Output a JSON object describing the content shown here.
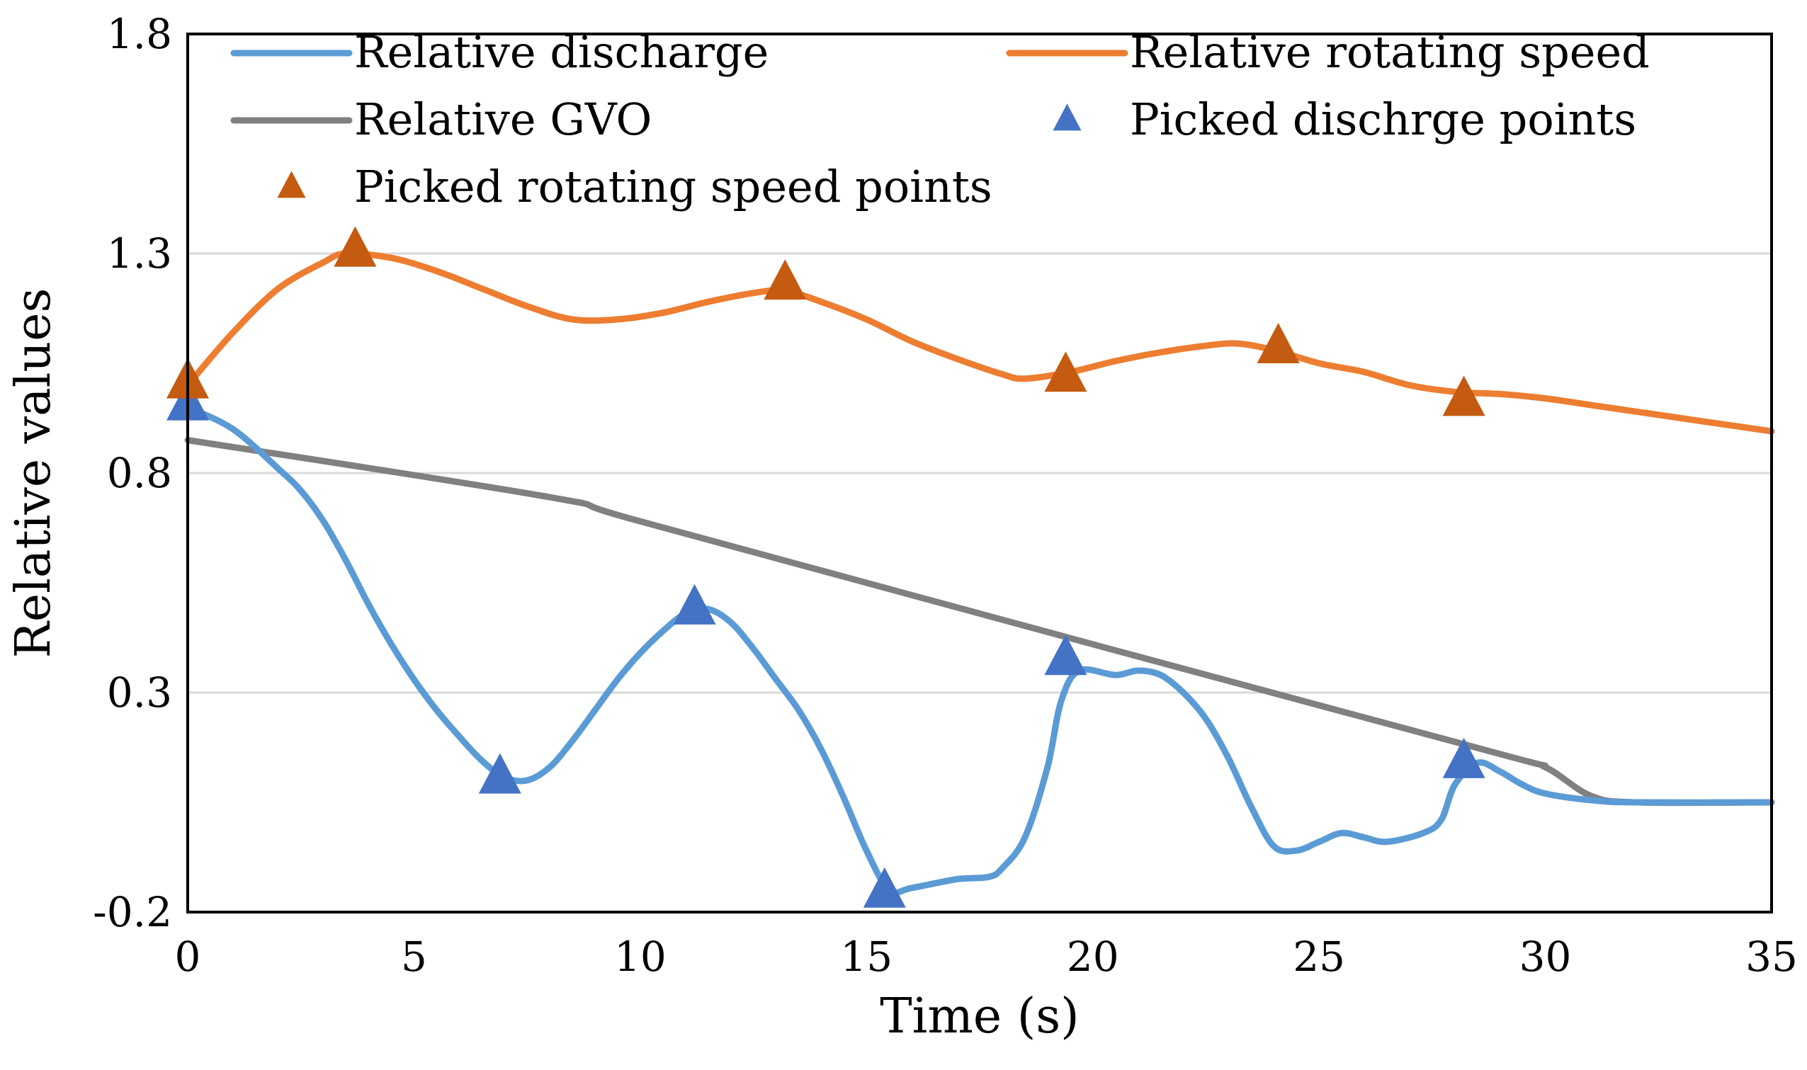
{
  "chart_data": {
    "type": "line",
    "title": "",
    "xlabel": "Time (s)",
    "ylabel": "Relative values",
    "xlim": [
      0,
      35
    ],
    "ylim": [
      -0.2,
      1.8
    ],
    "x_ticks": [
      0,
      5,
      10,
      15,
      20,
      25,
      30,
      35
    ],
    "y_ticks": [
      -0.2,
      0.3,
      0.8,
      1.3,
      1.8
    ],
    "x_tick_labels": [
      "0",
      "5",
      "10",
      "15",
      "20",
      "25",
      "30",
      "35"
    ],
    "y_tick_labels": [
      "-0.2",
      "0.3",
      "0.8",
      "1.3",
      "1.8"
    ],
    "grid": "horizontal",
    "legend_position": "top",
    "series": [
      {
        "name": "Relative discharge",
        "kind": "line",
        "color": "#5B9BD5",
        "points": [
          [
            0,
            0.95
          ],
          [
            1,
            0.9
          ],
          [
            2,
            0.81
          ],
          [
            2.5,
            0.76
          ],
          [
            3,
            0.69
          ],
          [
            3.5,
            0.6
          ],
          [
            4,
            0.5
          ],
          [
            4.5,
            0.41
          ],
          [
            5,
            0.33
          ],
          [
            5.5,
            0.26
          ],
          [
            6,
            0.2
          ],
          [
            6.5,
            0.145
          ],
          [
            7,
            0.107
          ],
          [
            7.5,
            0.1
          ],
          [
            8,
            0.13
          ],
          [
            8.5,
            0.19
          ],
          [
            9,
            0.26
          ],
          [
            9.5,
            0.33
          ],
          [
            10,
            0.39
          ],
          [
            10.5,
            0.44
          ],
          [
            11,
            0.48
          ],
          [
            11.5,
            0.49
          ],
          [
            12,
            0.46
          ],
          [
            12.5,
            0.4
          ],
          [
            13,
            0.33
          ],
          [
            13.5,
            0.26
          ],
          [
            14,
            0.17
          ],
          [
            14.5,
            0.06
          ],
          [
            15,
            -0.06
          ],
          [
            15.5,
            -0.15
          ],
          [
            16,
            -0.145
          ],
          [
            17,
            -0.125
          ],
          [
            17.7,
            -0.12
          ],
          [
            18,
            -0.1
          ],
          [
            18.5,
            -0.03
          ],
          [
            19,
            0.13
          ],
          [
            19.3,
            0.28
          ],
          [
            19.7,
            0.35
          ],
          [
            20.5,
            0.34
          ],
          [
            21,
            0.35
          ],
          [
            21.5,
            0.34
          ],
          [
            22,
            0.3
          ],
          [
            22.5,
            0.24
          ],
          [
            23,
            0.15
          ],
          [
            23.5,
            0.04
          ],
          [
            24,
            -0.05
          ],
          [
            24.5,
            -0.06
          ],
          [
            25,
            -0.04
          ],
          [
            25.5,
            -0.02
          ],
          [
            26,
            -0.03
          ],
          [
            26.5,
            -0.04
          ],
          [
            27.3,
            -0.02
          ],
          [
            27.7,
            0.01
          ],
          [
            28,
            0.09
          ],
          [
            28.5,
            0.14
          ],
          [
            29,
            0.12
          ],
          [
            29.5,
            0.09
          ],
          [
            30,
            0.07
          ],
          [
            31,
            0.055
          ],
          [
            32,
            0.05
          ],
          [
            35,
            0.05
          ]
        ]
      },
      {
        "name": "Relative rotating speed",
        "kind": "line",
        "color": "#ED7D31",
        "points": [
          [
            0,
            1.0
          ],
          [
            1,
            1.12
          ],
          [
            2,
            1.22
          ],
          [
            3,
            1.28
          ],
          [
            3.5,
            1.3
          ],
          [
            4.5,
            1.29
          ],
          [
            5.5,
            1.26
          ],
          [
            6.5,
            1.22
          ],
          [
            7.5,
            1.18
          ],
          [
            8.5,
            1.15
          ],
          [
            9.5,
            1.15
          ],
          [
            10.5,
            1.165
          ],
          [
            11.5,
            1.19
          ],
          [
            12.5,
            1.21
          ],
          [
            13.2,
            1.215
          ],
          [
            14,
            1.19
          ],
          [
            15,
            1.15
          ],
          [
            16,
            1.1
          ],
          [
            17,
            1.06
          ],
          [
            18,
            1.025
          ],
          [
            18.5,
            1.015
          ],
          [
            19.5,
            1.03
          ],
          [
            20.5,
            1.055
          ],
          [
            21.5,
            1.075
          ],
          [
            22.5,
            1.09
          ],
          [
            23.2,
            1.095
          ],
          [
            24,
            1.08
          ],
          [
            25,
            1.05
          ],
          [
            26,
            1.03
          ],
          [
            27,
            1.0
          ],
          [
            28,
            0.985
          ],
          [
            29,
            0.98
          ],
          [
            30,
            0.97
          ],
          [
            31,
            0.955
          ],
          [
            32,
            0.94
          ],
          [
            33,
            0.925
          ],
          [
            34,
            0.91
          ],
          [
            35,
            0.895
          ]
        ]
      },
      {
        "name": "Relative GVO",
        "kind": "line",
        "color": "#808080",
        "points": [
          [
            0,
            0.875
          ],
          [
            8,
            0.745
          ],
          [
            10,
            0.69
          ],
          [
            20,
            0.41
          ],
          [
            29,
            0.16
          ],
          [
            30,
            0.13
          ],
          [
            31,
            0.065
          ],
          [
            32,
            0.05
          ],
          [
            35,
            0.05
          ]
        ]
      },
      {
        "name": "Picked dischrge points",
        "kind": "markers",
        "color": "#4472C4",
        "points": [
          [
            0,
            0.955
          ],
          [
            6.9,
            0.105
          ],
          [
            11.2,
            0.49
          ],
          [
            15.4,
            -0.155
          ],
          [
            19.4,
            0.375
          ],
          [
            28.2,
            0.14
          ]
        ]
      },
      {
        "name": "Picked rotating speed points",
        "kind": "markers",
        "color": "#C55A11",
        "points": [
          [
            0,
            1.005
          ],
          [
            3.7,
            1.305
          ],
          [
            13.2,
            1.23
          ],
          [
            19.4,
            1.02
          ],
          [
            24.1,
            1.085
          ],
          [
            28.2,
            0.965
          ]
        ]
      }
    ]
  }
}
